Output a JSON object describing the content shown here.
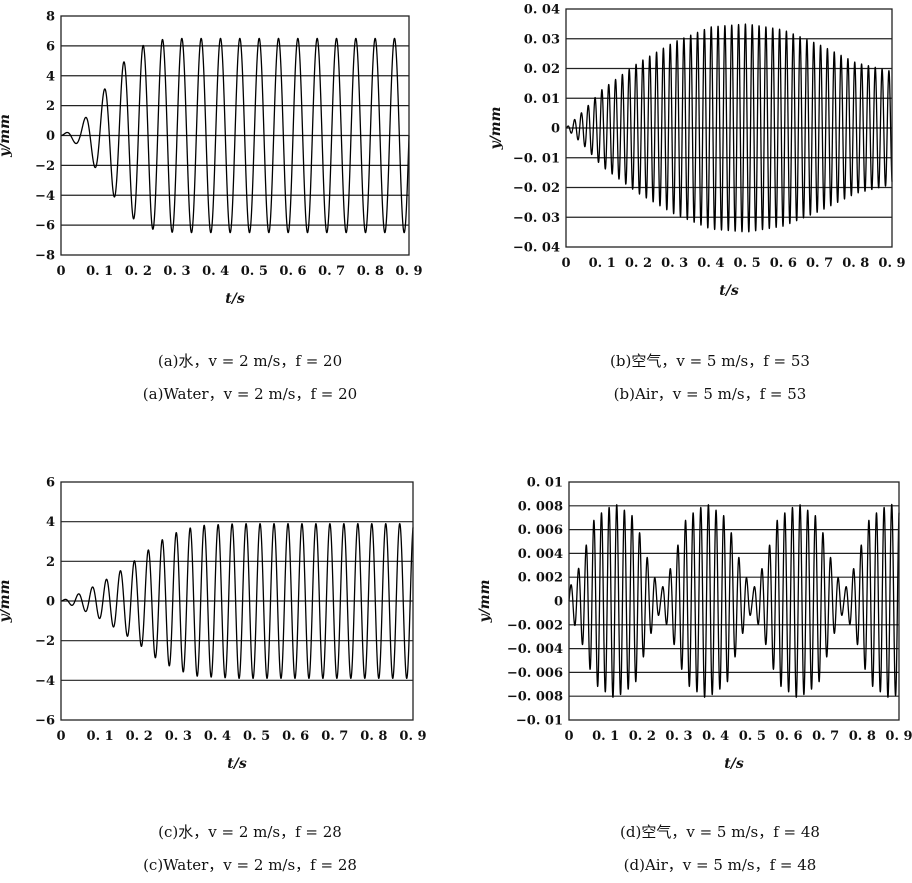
{
  "chart_data": [
    {
      "type": "line",
      "panel": "a",
      "xlabel": "t/s",
      "ylabel": "y/mm",
      "xlim": [
        0,
        0.9
      ],
      "ylim": [
        -8,
        8
      ],
      "x_ticks": [
        0,
        0.1,
        0.2,
        0.3,
        0.4,
        0.5,
        0.6,
        0.7,
        0.8,
        0.9
      ],
      "x_tick_labels": [
        "0",
        "0. 1",
        "0. 2",
        "0. 3",
        "0. 4",
        "0. 5",
        "0. 6",
        "0. 7",
        "0. 8",
        "0. 9"
      ],
      "y_ticks": [
        -8,
        -6,
        -4,
        -2,
        0,
        2,
        4,
        6,
        8
      ],
      "y_tick_labels": [
        "−8",
        "−6",
        "−4",
        "−2",
        "0",
        "2",
        "4",
        "6",
        "8"
      ],
      "grid": "horizontal",
      "series": [
        {
          "frequency_hz": 20,
          "peak_amplitude": 6.5,
          "envelope": [
            [
              0,
              0.0
            ],
            [
              0.05,
              0.7
            ],
            [
              0.1,
              2.6
            ],
            [
              0.15,
              4.6
            ],
            [
              0.2,
              5.9
            ],
            [
              0.25,
              6.4
            ],
            [
              0.3,
              6.5
            ],
            [
              0.9,
              6.5
            ]
          ]
        }
      ],
      "caption_cn": "(a)水，v = 2 m/s，f = 20",
      "caption_en": "(a)Water，v = 2 m/s，f = 20"
    },
    {
      "type": "line",
      "panel": "b",
      "xlabel": "t/s",
      "ylabel": "y/mm",
      "xlim": [
        0,
        0.9
      ],
      "ylim": [
        -0.04,
        0.04
      ],
      "x_ticks": [
        0,
        0.1,
        0.2,
        0.3,
        0.4,
        0.5,
        0.6,
        0.7,
        0.8,
        0.9
      ],
      "x_tick_labels": [
        "0",
        "0. 1",
        "0. 2",
        "0. 3",
        "0. 4",
        "0. 5",
        "0. 6",
        "0. 7",
        "0. 8",
        "0. 9"
      ],
      "y_ticks": [
        -0.04,
        -0.03,
        -0.02,
        -0.01,
        0,
        0.01,
        0.02,
        0.03,
        0.04
      ],
      "y_tick_labels": [
        "−0. 04",
        "−0. 03",
        "−0. 02",
        "−0. 01",
        "0",
        "0. 01",
        "0. 02",
        "0. 03",
        "0. 04"
      ],
      "grid": "horizontal",
      "series": [
        {
          "frequency_hz": 53,
          "peak_amplitude": 0.035,
          "envelope": [
            [
              0,
              0.0
            ],
            [
              0.05,
              0.006
            ],
            [
              0.1,
              0.013
            ],
            [
              0.2,
              0.022
            ],
            [
              0.3,
              0.029
            ],
            [
              0.4,
              0.034
            ],
            [
              0.5,
              0.035
            ],
            [
              0.6,
              0.033
            ],
            [
              0.7,
              0.028
            ],
            [
              0.8,
              0.022
            ],
            [
              0.9,
              0.019
            ]
          ]
        }
      ],
      "caption_cn": "(b)空气，v = 5 m/s，f = 53",
      "caption_en": "(b)Air，v = 5 m/s，f = 53"
    },
    {
      "type": "line",
      "panel": "c",
      "xlabel": "t/s",
      "ylabel": "y/mm",
      "xlim": [
        0,
        0.9
      ],
      "ylim": [
        -6,
        6
      ],
      "x_ticks": [
        0,
        0.1,
        0.2,
        0.3,
        0.4,
        0.5,
        0.6,
        0.7,
        0.8,
        0.9
      ],
      "x_tick_labels": [
        "0",
        "0. 1",
        "0. 2",
        "0. 3",
        "0. 4",
        "0. 5",
        "0. 6",
        "0. 7",
        "0. 8",
        "0. 9"
      ],
      "y_ticks": [
        -6,
        -4,
        -2,
        0,
        2,
        4,
        6
      ],
      "y_tick_labels": [
        "−6",
        "−4",
        "−2",
        "0",
        "2",
        "4",
        "6"
      ],
      "grid": "horizontal",
      "series": [
        {
          "frequency_hz": 28,
          "peak_amplitude": 3.9,
          "envelope": [
            [
              0,
              0.0
            ],
            [
              0.05,
              0.4
            ],
            [
              0.1,
              0.9
            ],
            [
              0.15,
              1.5
            ],
            [
              0.2,
              2.2
            ],
            [
              0.25,
              3.0
            ],
            [
              0.3,
              3.5
            ],
            [
              0.35,
              3.8
            ],
            [
              0.45,
              3.9
            ],
            [
              0.9,
              3.9
            ]
          ]
        }
      ],
      "caption_cn": "(c)水，v = 2 m/s，f = 28",
      "caption_en": "(c)Water，v = 2 m/s，f = 28"
    },
    {
      "type": "line",
      "panel": "d",
      "xlabel": "t/s",
      "ylabel": "y/mm",
      "xlim": [
        0,
        0.9
      ],
      "ylim": [
        -0.01,
        0.01
      ],
      "x_ticks": [
        0,
        0.1,
        0.2,
        0.3,
        0.4,
        0.5,
        0.6,
        0.7,
        0.8,
        0.9
      ],
      "x_tick_labels": [
        "0",
        "0. 1",
        "0. 2",
        "0. 3",
        "0. 4",
        "0. 5",
        "0. 6",
        "0. 7",
        "0. 8",
        "0. 9"
      ],
      "y_ticks": [
        -0.01,
        -0.008,
        -0.006,
        -0.004,
        -0.002,
        0,
        0.002,
        0.004,
        0.006,
        0.008,
        0.01
      ],
      "y_tick_labels": [
        "−0. 01",
        "−0. 008",
        "−0. 006",
        "−0. 004",
        "−0. 002",
        "0",
        "0. 002",
        "0. 004",
        "0. 006",
        "0. 008",
        "0. 01"
      ],
      "grid": "horizontal",
      "series": [
        {
          "frequency_hz": 48,
          "peak_amplitude": 0.008,
          "beat_period_s": 0.25,
          "envelope": [
            [
              0,
              0.001
            ],
            [
              0.03,
              0.003
            ],
            [
              0.07,
              0.007
            ],
            [
              0.125,
              0.0082
            ],
            [
              0.18,
              0.007
            ],
            [
              0.22,
              0.003
            ],
            [
              0.25,
              0.0008
            ],
            [
              0.28,
              0.003
            ],
            [
              0.32,
              0.007
            ],
            [
              0.375,
              0.0082
            ],
            [
              0.43,
              0.007
            ],
            [
              0.47,
              0.003
            ],
            [
              0.5,
              0.0008
            ],
            [
              0.53,
              0.003
            ],
            [
              0.57,
              0.007
            ],
            [
              0.625,
              0.0082
            ],
            [
              0.68,
              0.007
            ],
            [
              0.72,
              0.003
            ],
            [
              0.75,
              0.0008
            ],
            [
              0.78,
              0.003
            ],
            [
              0.82,
              0.007
            ],
            [
              0.875,
              0.0082
            ],
            [
              0.9,
              0.0078
            ]
          ]
        }
      ],
      "caption_cn": "(d)空气，v = 5 m/s，f = 48",
      "caption_en": "(d)Air，v = 5 m/s，f = 48"
    }
  ]
}
